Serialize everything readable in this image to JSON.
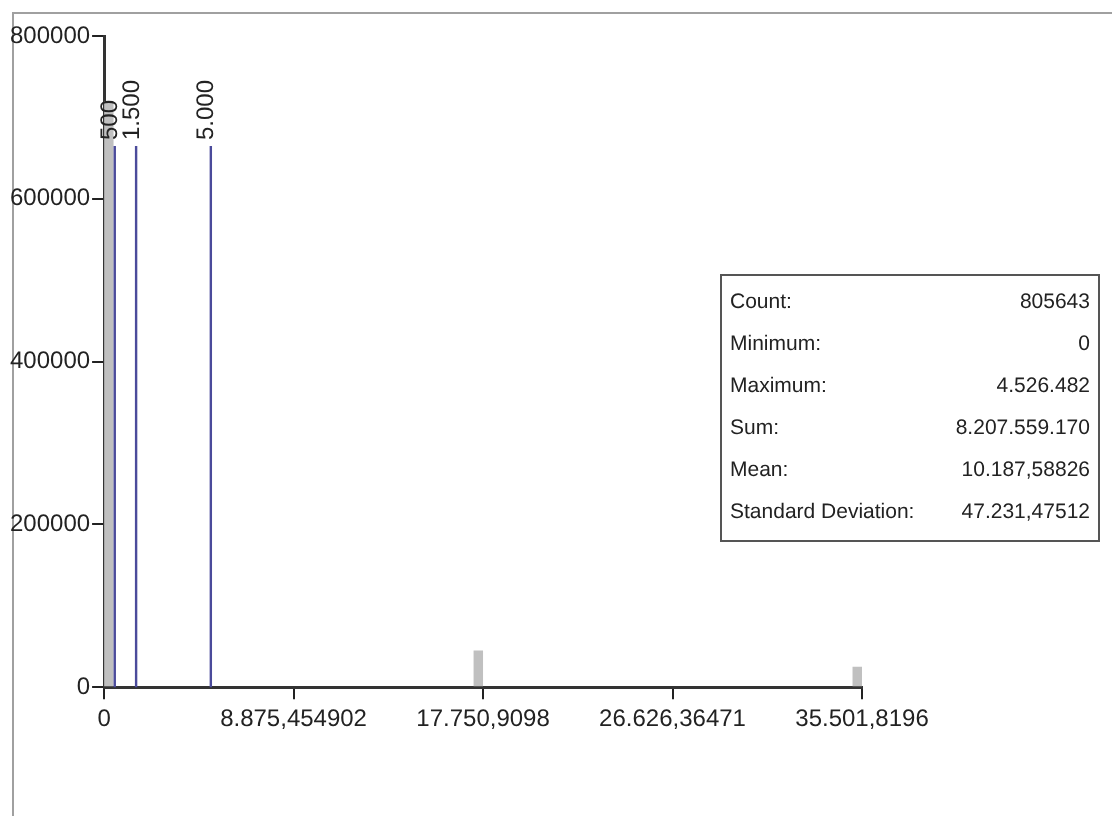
{
  "chart_data": {
    "type": "histogram",
    "bins": [
      0,
      443.77,
      17307.14,
      17750.91,
      35058.05,
      35501.82
    ],
    "values": [
      720000,
      0,
      45000,
      0,
      25000
    ],
    "color": "#c0c0c0",
    "xlim": [
      0,
      35501.8196
    ],
    "xticks": [
      0,
      {
        "value": 8875.454902,
        "label": "8.875,454902"
      },
      {
        "value": 17750.9098,
        "label": "17.750,9098"
      },
      {
        "value": 26626.36471,
        "label": "26.626,36471"
      },
      {
        "value": 35501.8196,
        "label": "35.501,8196"
      }
    ],
    "ylim": [
      0,
      800000
    ],
    "yticks": [
      0,
      200000,
      400000,
      600000,
      800000
    ],
    "grid": false,
    "legend": false,
    "ref_lines": [
      {
        "axis": "x",
        "value": 500,
        "label": "500",
        "color": "#4b4b9b"
      },
      {
        "axis": "x",
        "value": 1500,
        "label": "1.500",
        "color": "#4b4b9b"
      },
      {
        "axis": "x",
        "value": 5000,
        "label": "5.000",
        "color": "#4b4b9b"
      }
    ],
    "annotations": [
      "Count:",
      "805643",
      "Minimum:",
      "0",
      "Maximum:",
      "4.526.482",
      "Sum:",
      "8.207.559.170",
      "Mean:",
      "10.187,58826",
      "Standard Deviation:",
      "47.231,47512"
    ]
  }
}
